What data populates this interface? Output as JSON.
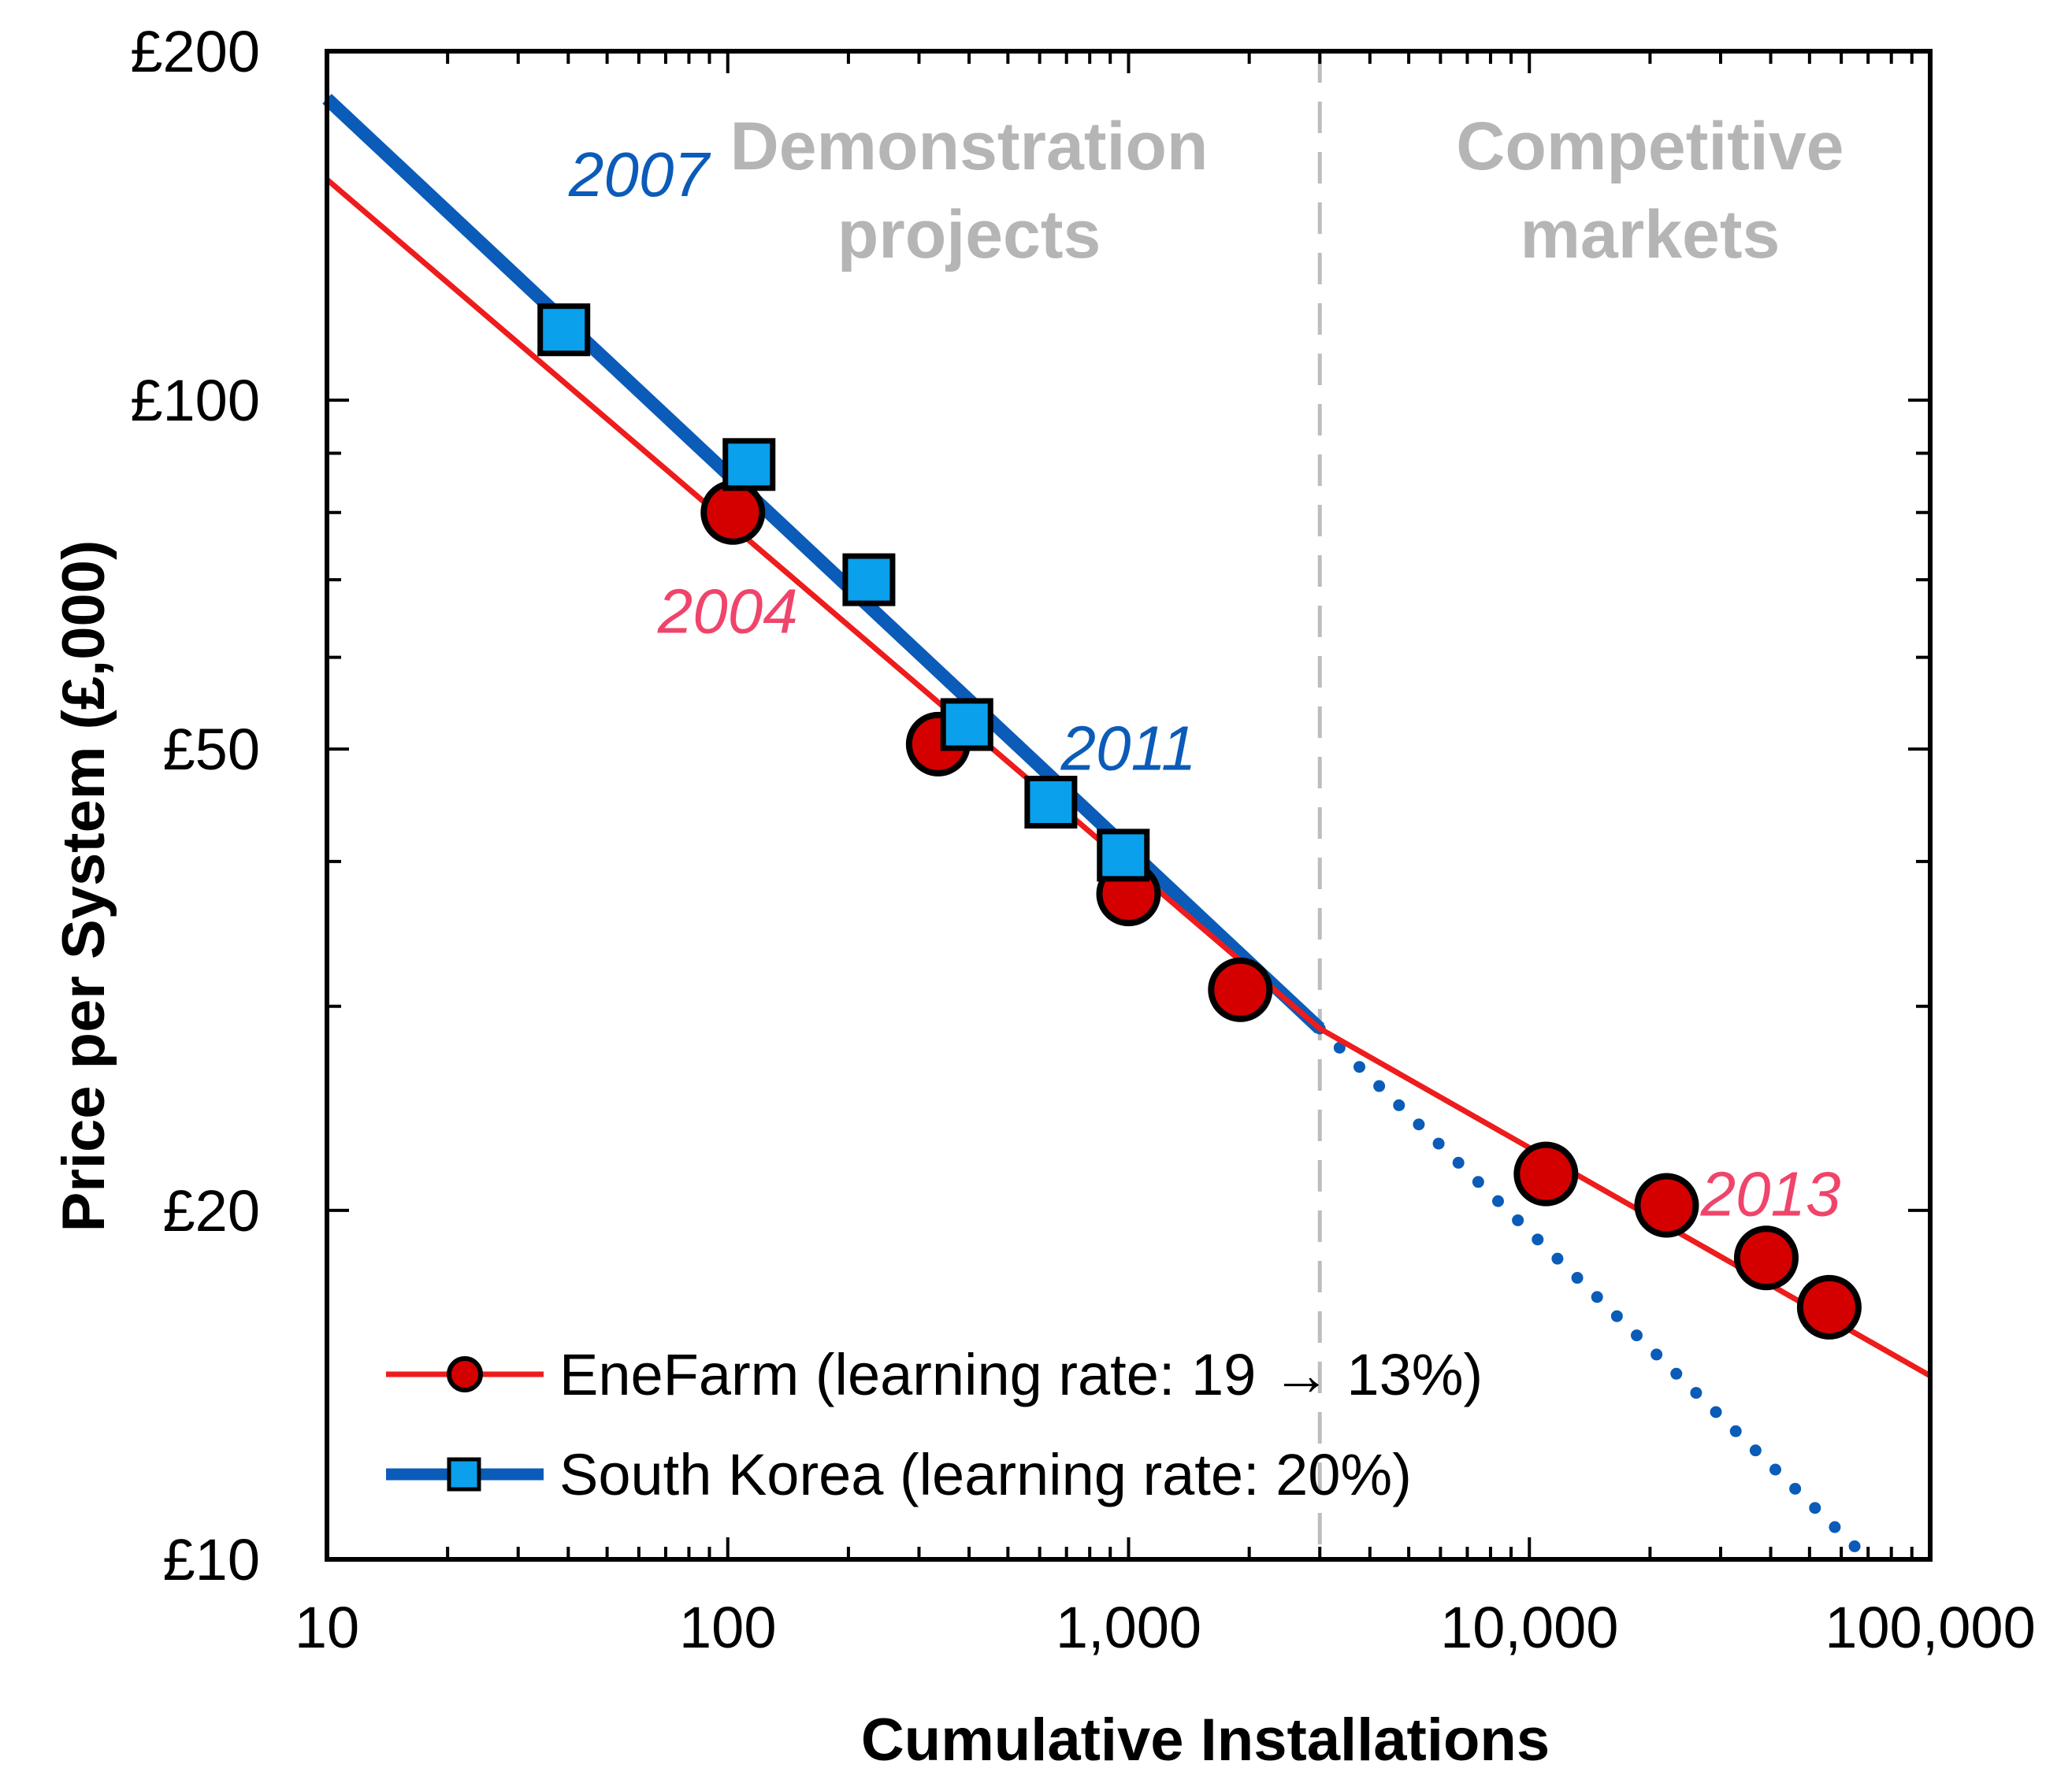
{
  "chart_data": {
    "type": "scatter",
    "title": "",
    "xlabel": "Cumulative Installations",
    "ylabel": "Price per System (£,000)",
    "xscale": "log",
    "yscale": "log",
    "xlim": [
      10,
      100000
    ],
    "ylim": [
      10,
      200
    ],
    "x_ticks": [
      10,
      100,
      1000,
      10000,
      100000
    ],
    "x_tick_labels": [
      "10",
      "100",
      "1,000",
      "10,000",
      "100,000"
    ],
    "y_ticks": [
      10,
      20,
      50,
      100,
      200
    ],
    "y_tick_labels": [
      "£10",
      "£20",
      "£50",
      "£100",
      "£200"
    ],
    "grid": false,
    "divider": {
      "x": 3000,
      "style": "dashed"
    },
    "regions": [
      {
        "name": "demonstration",
        "lines": [
          "Demonstration",
          "projects"
        ],
        "x_center": 400
      },
      {
        "name": "competitive",
        "lines": [
          "Competitive",
          "markets"
        ],
        "x_center": 20000
      }
    ],
    "series": [
      {
        "name": "EneFarm",
        "legend_label": "EneFarm (learning rate: 19 → 13%)",
        "color": "#ee1c1c",
        "marker": "circle",
        "marker_fill": "#d40000",
        "points": [
          {
            "x": 103,
            "y": 80
          },
          {
            "x": 335,
            "y": 50.5
          },
          {
            "x": 1000,
            "y": 37.5
          },
          {
            "x": 1900,
            "y": 31
          },
          {
            "x": 11000,
            "y": 21.5
          },
          {
            "x": 22000,
            "y": 20.2
          },
          {
            "x": 39000,
            "y": 18.2
          },
          {
            "x": 56000,
            "y": 16.5
          }
        ],
        "fit_line": [
          {
            "x": 10,
            "y": 155
          },
          {
            "x": 3000,
            "y": 28.7
          },
          {
            "x": 100000,
            "y": 14.4
          }
        ]
      },
      {
        "name": "South Korea",
        "legend_label": "South Korea (learning rate: 20%)",
        "color": "#0b5bb8",
        "marker": "square",
        "marker_fill": "#0aa0ec",
        "points": [
          {
            "x": 39,
            "y": 115
          },
          {
            "x": 113,
            "y": 88
          },
          {
            "x": 225,
            "y": 70
          },
          {
            "x": 395,
            "y": 52.5
          },
          {
            "x": 640,
            "y": 45
          },
          {
            "x": 970,
            "y": 40.5
          }
        ],
        "fit_line": [
          {
            "x": 10,
            "y": 182
          },
          {
            "x": 3000,
            "y": 28.7
          }
        ],
        "projection_line": [
          {
            "x": 3000,
            "y": 28.7
          },
          {
            "x": 70000,
            "y": 10
          }
        ]
      }
    ],
    "annotations": [
      {
        "name": "year-2007",
        "text": "2007",
        "x": 60,
        "y": 150,
        "color": "#0b5bb8"
      },
      {
        "name": "year-2004",
        "text": "2004",
        "x": 100,
        "y": 63,
        "color": "#f0446a"
      },
      {
        "name": "year-2011",
        "text": "2011",
        "x": 1000,
        "y": 48,
        "color": "#0b5bb8"
      },
      {
        "name": "year-2013",
        "text": "2013",
        "x": 40000,
        "y": 19.8,
        "color": "#f0446a"
      }
    ]
  }
}
